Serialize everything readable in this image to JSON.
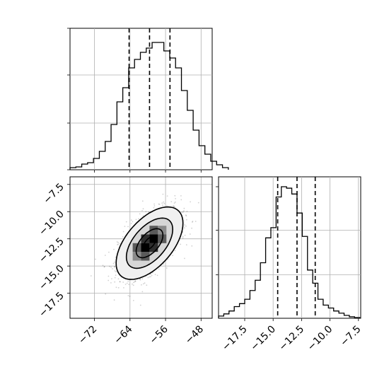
{
  "chart_data": {
    "type": "corner",
    "panels": [
      {
        "id": "hist-x",
        "type": "histogram",
        "xlim": [
          -77.5,
          -45.5
        ],
        "bins_start": -77.5,
        "bin_width": 1.32,
        "counts": [
          0.015,
          0.02,
          0.04,
          0.05,
          0.08,
          0.13,
          0.2,
          0.32,
          0.48,
          0.58,
          0.72,
          0.78,
          0.83,
          0.86,
          0.9,
          0.9,
          0.84,
          0.79,
          0.72,
          0.56,
          0.42,
          0.28,
          0.17,
          0.11,
          0.06,
          0.035,
          0.015
        ],
        "quantiles": [
          -64.2,
          -59.6,
          -55.0
        ],
        "grid": true
      },
      {
        "id": "hist-y",
        "type": "histogram",
        "xlim": [
          -19.8,
          -7.3
        ],
        "bins_start": -19.8,
        "bin_width": 0.46,
        "counts": [
          0.015,
          0.03,
          0.05,
          0.08,
          0.1,
          0.13,
          0.19,
          0.26,
          0.38,
          0.55,
          0.62,
          0.83,
          0.9,
          0.89,
          0.85,
          0.72,
          0.56,
          0.33,
          0.24,
          0.13,
          0.09,
          0.07,
          0.05,
          0.035,
          0.02,
          0.01,
          0.005
        ],
        "quantiles": [
          -14.6,
          -12.9,
          -11.3
        ],
        "grid": true,
        "xticks": [
          -17.5,
          -15.0,
          -12.5,
          -10.0,
          -7.5
        ],
        "xtick_labels": [
          "−17.5",
          "−15.0",
          "−12.5",
          "−10.0",
          "−7.5"
        ]
      },
      {
        "id": "joint",
        "type": "2d-density",
        "xlim": [
          -77.5,
          -45.5
        ],
        "ylim": [
          -19.8,
          -6.8
        ],
        "center": [
          -59.6,
          -12.9
        ],
        "sigma": [
          3.5,
          1.55
        ],
        "rho": 0.55,
        "contour_levels": [
          0.39,
          0.86,
          1.49,
          2.15
        ],
        "grid": true,
        "xticks": [
          -72,
          -64,
          -56,
          -48
        ],
        "xtick_labels": [
          "−72",
          "−64",
          "−56",
          "−48"
        ],
        "yticks": [
          -7.5,
          -10.0,
          -12.5,
          -15.0,
          -17.5
        ],
        "ytick_labels": [
          "−7.5",
          "−10.0",
          "−12.5",
          "−15.0",
          "−17.5"
        ]
      }
    ]
  }
}
